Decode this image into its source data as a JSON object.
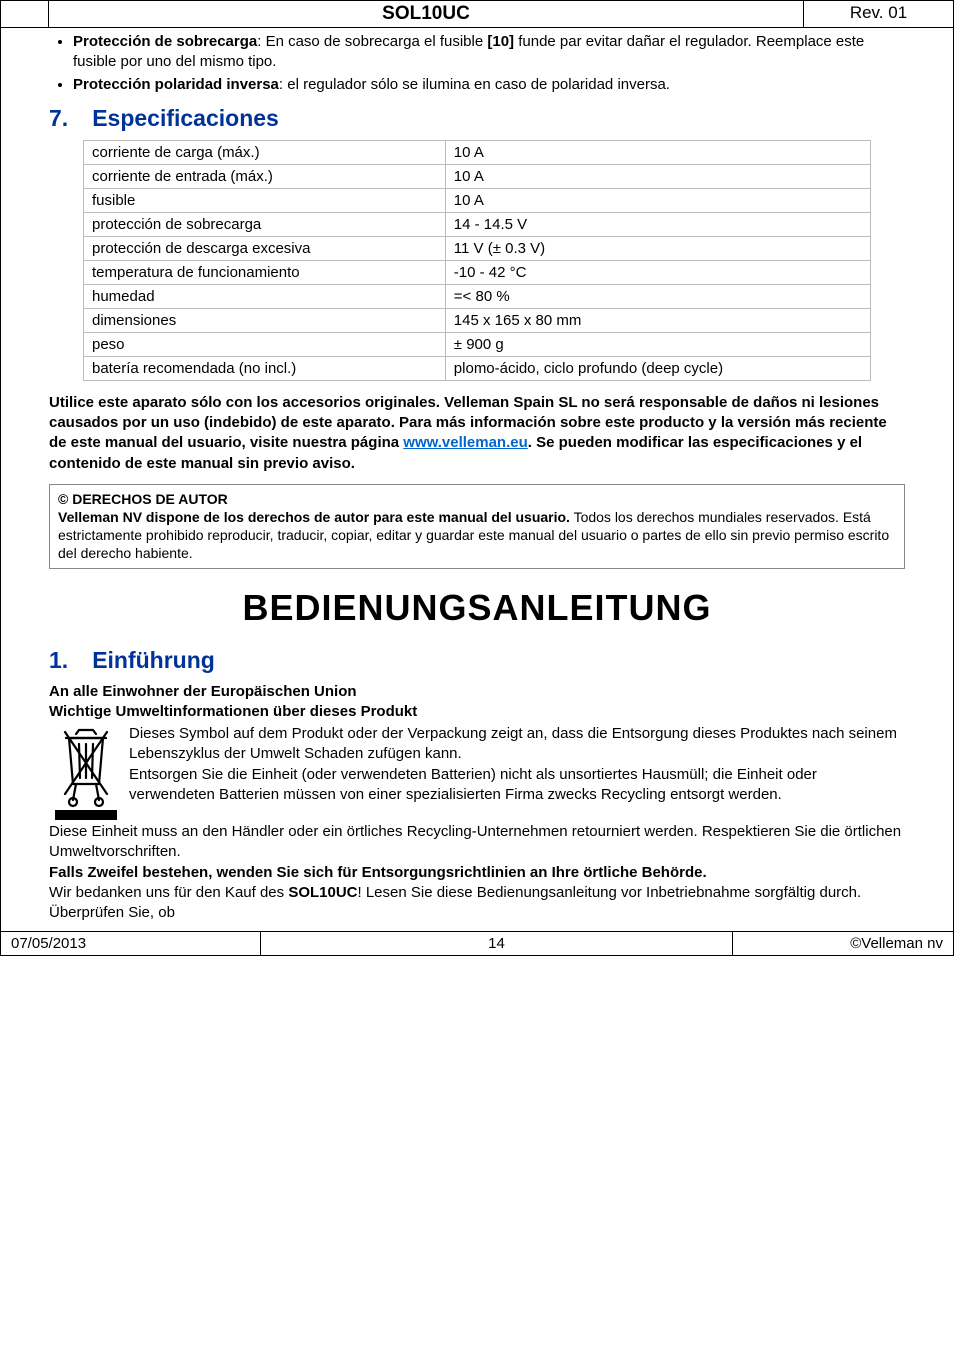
{
  "header": {
    "title": "SOL10UC",
    "rev": "Rev. 01"
  },
  "bullets": [
    {
      "label": "Protección de sobrecarga",
      "text": ": En caso de sobrecarga el fusible ",
      "ref": "[10]",
      "tail": " funde par evitar dañar el regulador. Reemplace este fusible por uno del mismo tipo."
    },
    {
      "label": "Protección polaridad inversa",
      "text": ": el regulador sólo se ilumina en caso de polaridad inversa.",
      "ref": "",
      "tail": ""
    }
  ],
  "section7": {
    "num": "7.",
    "title": "Especificaciones"
  },
  "spec_rows": [
    [
      "corriente de carga (máx.)",
      "10 A"
    ],
    [
      "corriente de entrada (máx.)",
      "10 A"
    ],
    [
      "fusible",
      "10 A"
    ],
    [
      "protección de sobrecarga",
      "14 - 14.5 V"
    ],
    [
      "protección de descarga excesiva",
      "11 V (± 0.3 V)"
    ],
    [
      "temperatura de funcionamiento",
      "-10 - 42 °C"
    ],
    [
      "humedad",
      "=< 80 %"
    ],
    [
      "dimensiones",
      "145 x 165 x 80 mm"
    ],
    [
      "peso",
      "± 900 g"
    ],
    [
      "batería recomendada (no incl.)",
      "plomo-ácido, ciclo profundo (deep cycle)"
    ]
  ],
  "warn_para": {
    "pre": "Utilice este aparato sólo con los accesorios originales. Velleman Spain SL no será responsable de daños ni lesiones causados por un uso (indebido) de este aparato. Para más información sobre este producto y la versión más reciente de este manual del usuario, visite nuestra página ",
    "link_text": "www.velleman.eu",
    "post": ". Se pueden modificar las especificaciones y el contenido de este manual sin previo aviso."
  },
  "rights": {
    "title": "© DERECHOS DE AUTOR",
    "sub": "Velleman NV dispone de los derechos de autor para este manual del usuario.",
    "body": " Todos los derechos mundiales reservados. Está estrictamente prohibido reproducir, traducir, copiar, editar y guardar este manual del usuario o partes de ello sin previo permiso escrito del derecho habiente."
  },
  "doc_title": "BEDIENUNGSANLEITUNG",
  "section1": {
    "num": "1.",
    "title": "Einführung"
  },
  "de_sub1": "An alle Einwohner der Europäischen Union",
  "de_sub2": "Wichtige Umweltinformationen über dieses Produkt",
  "de_body1": "Dieses Symbol auf dem Produkt oder der Verpackung zeigt an, dass die Entsorgung dieses Produktes nach seinem Lebenszyklus der Umwelt Schaden zufügen kann.",
  "de_body2": "Entsorgen Sie die Einheit (oder verwendeten Batterien) nicht als unsortiertes Hausmüll; die Einheit oder verwendeten Batterien müssen von einer spezialisierten Firma zwecks Recycling entsorgt werden.",
  "de_body3": "Diese Einheit muss an den Händler oder ein örtliches Recycling-Unternehmen retourniert werden. Respektieren Sie die örtlichen Umweltvorschriften.",
  "de_bold3": "Falls Zweifel bestehen, wenden Sie sich für Entsorgungsrichtlinien an Ihre örtliche Behörde.",
  "de_body4a": "Wir bedanken uns für den Kauf des ",
  "de_body4b": "SOL10UC",
  "de_body4c": "! Lesen Sie diese Bedienungsanleitung vor Inbetriebnahme sorgfältig durch. Überprüfen Sie, ob",
  "footer": {
    "date": "07/05/2013",
    "page": "14",
    "copy": "©Velleman nv"
  }
}
